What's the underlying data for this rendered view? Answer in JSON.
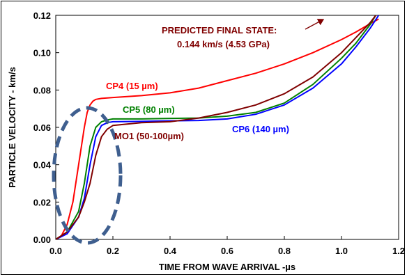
{
  "chart_data": {
    "type": "line",
    "title": "",
    "xlabel": "TIME FROM WAVE ARRIVAL -µs",
    "ylabel": "PARTICLE VELOCITY - km/s",
    "xlim": [
      0.0,
      1.2
    ],
    "ylim": [
      0.0,
      0.12
    ],
    "x_ticks": [
      "0.0",
      "0.2",
      "0.4",
      "0.6",
      "0.8",
      "1.0",
      "1.2"
    ],
    "y_ticks": [
      "0.00",
      "0.02",
      "0.04",
      "0.06",
      "0.08",
      "0.10",
      "0.12"
    ],
    "grid": false,
    "series": [
      {
        "name": "CP4 (15 µm)",
        "color": "#ff0000",
        "x": [
          0.0,
          0.02,
          0.04,
          0.06,
          0.08,
          0.1,
          0.11,
          0.12,
          0.13,
          0.14,
          0.16,
          0.2,
          0.3,
          0.4,
          0.5,
          0.6,
          0.7,
          0.8,
          0.9,
          1.0,
          1.05,
          1.1,
          1.13
        ],
        "y": [
          0.0,
          0.002,
          0.008,
          0.02,
          0.04,
          0.06,
          0.068,
          0.072,
          0.074,
          0.075,
          0.0755,
          0.076,
          0.077,
          0.0785,
          0.081,
          0.085,
          0.089,
          0.094,
          0.1,
          0.107,
          0.111,
          0.1155,
          0.118
        ]
      },
      {
        "name": "CP5 (80 µm)",
        "color": "#008000",
        "x": [
          0.0,
          0.04,
          0.08,
          0.1,
          0.12,
          0.14,
          0.16,
          0.18,
          0.2,
          0.3,
          0.4,
          0.5,
          0.6,
          0.7,
          0.8,
          0.9,
          1.0,
          1.05,
          1.1,
          1.12
        ],
        "y": [
          0.0,
          0.004,
          0.015,
          0.03,
          0.05,
          0.06,
          0.063,
          0.064,
          0.0645,
          0.0645,
          0.0648,
          0.065,
          0.066,
          0.068,
          0.073,
          0.083,
          0.097,
          0.105,
          0.115,
          0.12
        ]
      },
      {
        "name": "CP6 (140 µm)",
        "color": "#0000ff",
        "x": [
          0.0,
          0.04,
          0.08,
          0.1,
          0.12,
          0.14,
          0.16,
          0.18,
          0.2,
          0.3,
          0.4,
          0.5,
          0.6,
          0.7,
          0.8,
          0.9,
          1.0,
          1.05,
          1.1,
          1.13
        ],
        "y": [
          0.0,
          0.003,
          0.012,
          0.022,
          0.04,
          0.055,
          0.061,
          0.0625,
          0.063,
          0.0632,
          0.0635,
          0.0637,
          0.0645,
          0.067,
          0.072,
          0.081,
          0.094,
          0.103,
          0.113,
          0.12
        ]
      },
      {
        "name": "MO1 (50-100µm)",
        "color": "#800000",
        "x": [
          0.0,
          0.04,
          0.08,
          0.1,
          0.12,
          0.14,
          0.16,
          0.18,
          0.2,
          0.3,
          0.4,
          0.5,
          0.6,
          0.7,
          0.8,
          0.9,
          1.0,
          1.05,
          1.1,
          1.12
        ],
        "y": [
          0.0,
          0.004,
          0.012,
          0.02,
          0.03,
          0.045,
          0.055,
          0.059,
          0.061,
          0.0625,
          0.063,
          0.065,
          0.068,
          0.072,
          0.078,
          0.087,
          0.1,
          0.108,
          0.116,
          0.12
        ]
      }
    ],
    "annotations": {
      "predicted_line1": "PREDICTED FINAL STATE:",
      "predicted_line2": "0.144 km/s (4.53 GPa)",
      "cp4": "CP4 (15 µm)",
      "cp5": "CP5 (80 µm)",
      "cp6": "CP6 (140 µm)",
      "mo1": "MO1 (50-100µm)"
    }
  }
}
